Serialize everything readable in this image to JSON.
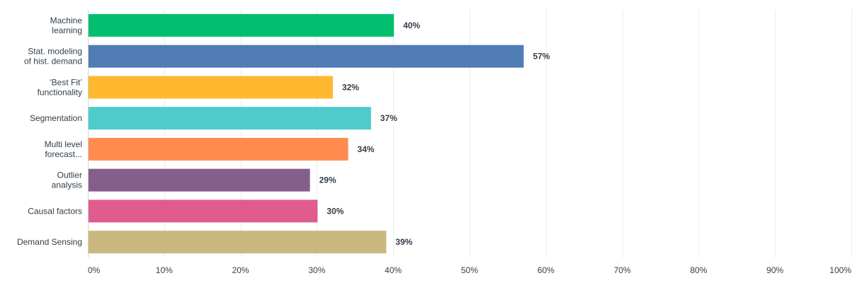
{
  "chart_data": {
    "type": "bar",
    "orientation": "horizontal",
    "categories": [
      [
        "Machine",
        "learning"
      ],
      [
        "Stat. modeling",
        "of hist. demand"
      ],
      [
        "‘Best Fit’",
        "functionality"
      ],
      [
        "Segmentation"
      ],
      [
        "Multi level",
        "forecast..."
      ],
      [
        "Outlier",
        "analysis"
      ],
      [
        "Causal factors"
      ],
      [
        "Demand Sensing"
      ]
    ],
    "values": [
      40,
      57,
      32,
      37,
      34,
      29,
      30,
      39
    ],
    "value_labels": [
      "40%",
      "57%",
      "32%",
      "37%",
      "34%",
      "29%",
      "30%",
      "39%"
    ],
    "colors": [
      "#00bf6f",
      "#507cb6",
      "#ffb930",
      "#50cbcb",
      "#ff8b4f",
      "#845f8c",
      "#e05c8f",
      "#c9b97f"
    ],
    "xlim": [
      0,
      100
    ],
    "x_ticks": [
      0,
      10,
      20,
      30,
      40,
      50,
      60,
      70,
      80,
      90,
      100
    ],
    "x_tick_labels": [
      "0%",
      "10%",
      "20%",
      "30%",
      "40%",
      "50%",
      "60%",
      "70%",
      "80%",
      "90%",
      "100%"
    ],
    "grid": true,
    "title": "",
    "xlabel": "",
    "ylabel": ""
  }
}
